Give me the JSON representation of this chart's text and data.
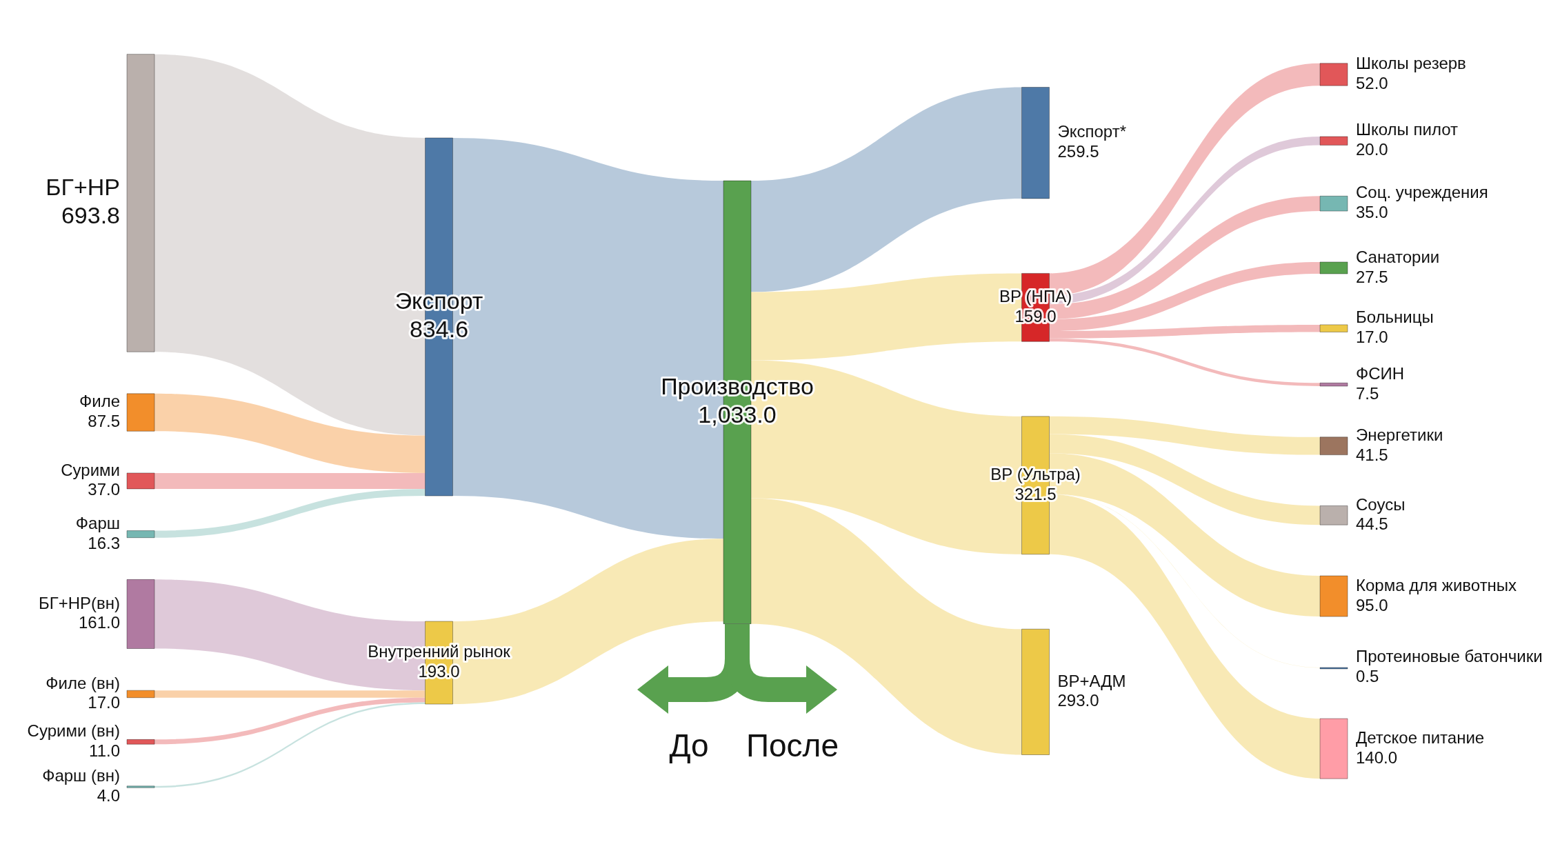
{
  "chart_data": {
    "type": "other",
    "categories": [
      "БГ+НР",
      "Филе",
      "Сурими",
      "Фарш",
      "БГ+НР(вн)",
      "Филе (вн)",
      "Сурими (вн)",
      "Фарш (вн)",
      "Экспорт",
      "Внутренний рынок",
      "Производство",
      "Экспорт*",
      "ВР (НПА)",
      "ВР (Ультра)",
      "ВР+АДМ",
      "Школы резерв",
      "Школы пилот",
      "Соц. учреждения",
      "Санатории",
      "Больницы",
      "ФСИН",
      "Энергетики",
      "Соусы",
      "Корма для животных",
      "Протеиновые батончики",
      "Детское питание"
    ],
    "values": [
      693.8,
      87.5,
      37.0,
      16.3,
      161.0,
      17.0,
      11.0,
      4.0,
      834.6,
      193.0,
      1033.0,
      259.5,
      159.0,
      321.5,
      293.0,
      52.0,
      20.0,
      35.0,
      27.5,
      17.0,
      7.5,
      41.5,
      44.5,
      95.0,
      0.5,
      140.0
    ],
    "value_labels": [
      "693.8",
      "87.5",
      "37.0",
      "16.3",
      "161.0",
      "17.0",
      "11.0",
      "4.0",
      "834.6",
      "193.0",
      "1,033.0",
      "259.5",
      "159.0",
      "321.5",
      "293.0",
      "52.0",
      "20.0",
      "35.0",
      "27.5",
      "17.0",
      "7.5",
      "41.5",
      "44.5",
      "95.0",
      "0.5",
      "140.0"
    ],
    "colors": [
      "#bab0ac",
      "#f28e2b",
      "#e15759",
      "#76b7b2",
      "#b07aa1",
      "#f28e2b",
      "#e15759",
      "#76b7b2",
      "#4e79a7",
      "#edc948",
      "#59a14f",
      "#4e79a7",
      "#d62728",
      "#edc948",
      "#edc948",
      "#e15759",
      "#e15759",
      "#76b7b2",
      "#59a14f",
      "#edc948",
      "#b07aa1",
      "#9c755f",
      "#bab0ac",
      "#f28e2b",
      "#4e79a7",
      "#ff9da7"
    ],
    "annotations": [
      "До",
      "После"
    ]
  }
}
